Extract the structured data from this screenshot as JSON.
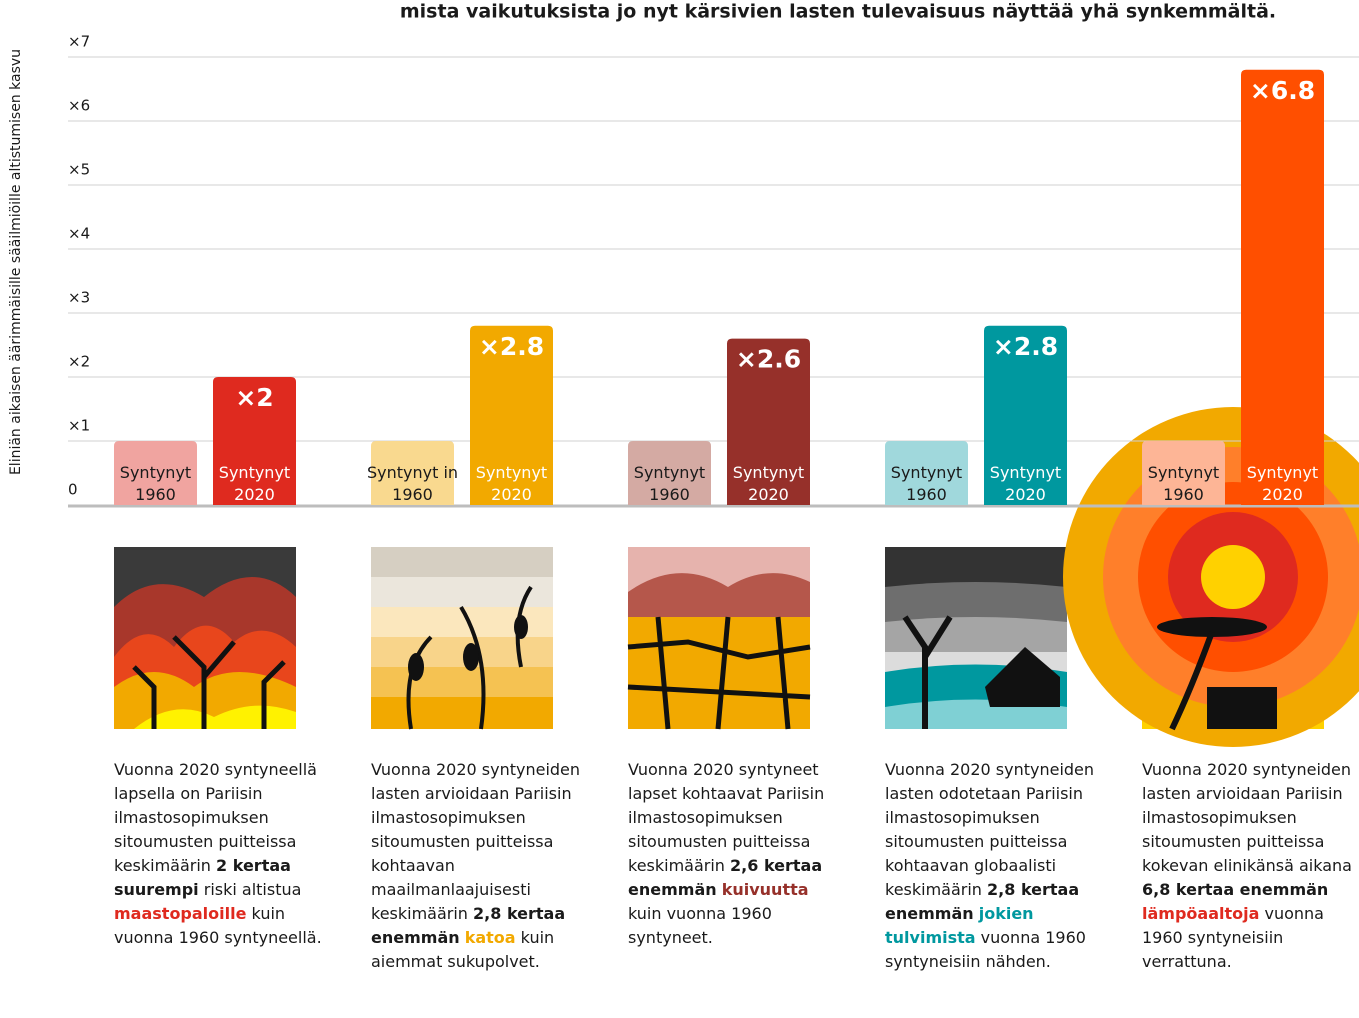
{
  "chart_data": {
    "type": "bar",
    "subtitle": "mista vaikutuksista jo nyt kärsivien lasten tulevaisuus näyttää yhä synkemmältä.",
    "ylabel": "Eliniän aikaisen äärimmäisille sääilmiöille altistumisen kasvu",
    "ylim": [
      0,
      7
    ],
    "yticks": [
      0,
      {
        "value": 1,
        "label": "×1"
      },
      {
        "value": 2,
        "label": "×2"
      },
      {
        "value": 3,
        "label": "×3"
      },
      {
        "value": 4,
        "label": "×4"
      },
      {
        "value": 5,
        "label": "×5"
      },
      {
        "value": 6,
        "label": "×6"
      },
      {
        "value": 7,
        "label": "×7"
      }
    ],
    "grid": true,
    "series": [
      {
        "labels": [
          "Syntynyt 1960",
          "Syntynyt in 1960",
          "Syntynyt 1960",
          "Syntynyt 1960",
          "Syntynyt 1960"
        ],
        "colors": [
          "#f0a4a0",
          "#f9d98f",
          "#d4aaa3",
          "#a0d8dc",
          "#fdb596"
        ],
        "values": [
          1,
          1,
          1,
          1,
          1
        ]
      },
      {
        "labels": [
          "Syntynyt 2020",
          "Syntynyt 2020",
          "Syntynyt 2020",
          "Syntynyt 2020",
          "Syntynyt 2020"
        ],
        "colors": [
          "#df2a1f",
          "#f2a900",
          "#96302a",
          "#00989f",
          "#ff4f00"
        ],
        "values": [
          2,
          2.8,
          2.6,
          2.8,
          6.8
        ],
        "value_labels": [
          "×2",
          "×2.8",
          "×2.6",
          "×2.8",
          "×6.8"
        ]
      }
    ],
    "descriptions": [
      [
        {
          "text": "Vuonna 2020 syntyneellä lapsella on Pariisin ilmastosopimuksen sitoumusten puitteissa keskimäärin "
        },
        {
          "text": "2 kertaa suurempi",
          "bold": true
        },
        {
          "text": " riski altistua "
        },
        {
          "text": "maastopaloille",
          "bold": true,
          "color": "#df2a1f"
        },
        {
          "text": " kuin vuonna 1960 syntyneellä."
        }
      ],
      [
        {
          "text": "Vuonna 2020 syntyneiden lasten arvioidaan Pariisin ilmastosopimuksen sitoumusten puitteissa kohtaavan maailmanlaajuisesti keskimäärin "
        },
        {
          "text": "2,8 kertaa enemmän",
          "bold": true
        },
        {
          "text": " "
        },
        {
          "text": "katoa",
          "bold": true,
          "color": "#f2a900"
        },
        {
          "text": " kuin aiemmat sukupolvet."
        }
      ],
      [
        {
          "text": "Vuonna 2020 syntyneet lapset kohtaavat Pariisin ilmastosopimuksen sitoumusten puitteissa keskimäärin "
        },
        {
          "text": "2,6 kertaa enemmän",
          "bold": true
        },
        {
          "text": " "
        },
        {
          "text": "kuivuutta",
          "bold": true,
          "color": "#96302a"
        },
        {
          "text": " kuin vuonna 1960 syntyneet."
        }
      ],
      [
        {
          "text": "Vuonna 2020 syntyneiden lasten odotetaan Pariisin ilmastosopimuksen sitoumusten puitteissa kohtaavan globaalisti keskimäärin "
        },
        {
          "text": "2,8 kertaa enemmän",
          "bold": true
        },
        {
          "text": " "
        },
        {
          "text": "jokien tulvimista",
          "bold": true,
          "color": "#00989f"
        },
        {
          "text": " vuonna 1960 syntyneisiin nähden."
        }
      ],
      [
        {
          "text": "Vuonna 2020 syntyneiden lasten arvioidaan Pariisin ilmastosopimuksen sitoumusten puitteissa kokevan elinikänsä aikana "
        },
        {
          "text": "6,8 kertaa enemmän",
          "bold": true
        },
        {
          "text": " "
        },
        {
          "text": "lämpöaaltoja",
          "bold": true,
          "color": "#df2a1f"
        },
        {
          "text": " vuonna 1960 syntyneisiin verrattuna."
        }
      ]
    ]
  }
}
